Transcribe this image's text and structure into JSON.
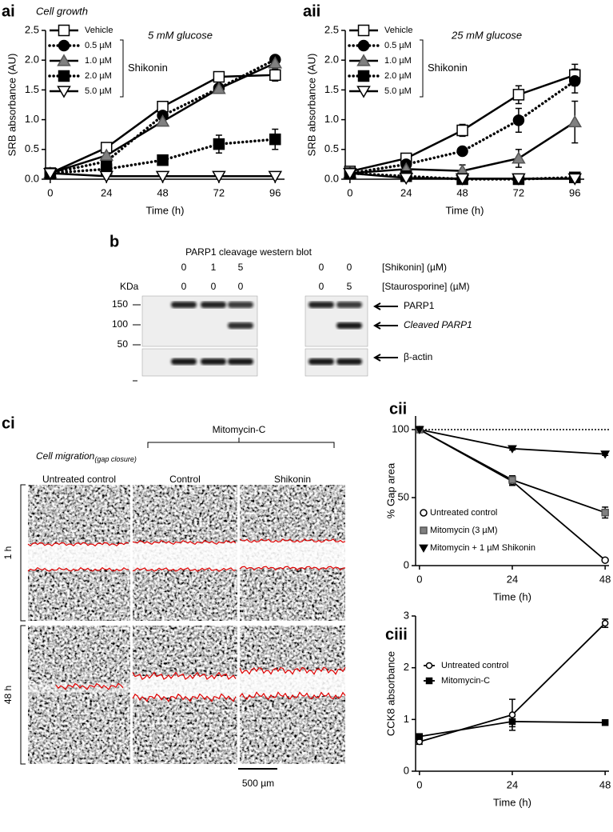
{
  "chart_data": [
    {
      "type": "line",
      "panel": "ai",
      "title": "Cell growth",
      "annotation": "5 mM glucose",
      "x_label": "Time (h)",
      "y_label": "SRB absorbance (AU)",
      "x": [
        0,
        24,
        48,
        72,
        96
      ],
      "xlim": [
        -2,
        100
      ],
      "xticks": [
        0,
        24,
        48,
        72,
        96
      ],
      "ylim": [
        0,
        2.5
      ],
      "yticks": [
        {
          "value": 0,
          "label": "0.0"
        },
        0.5,
        {
          "value": 1,
          "label": "1.0"
        },
        1.5,
        {
          "value": 2,
          "label": "2.0"
        },
        2.5
      ],
      "legend": "upper left",
      "legend_group": "Shikonin",
      "series": [
        {
          "name": "Vehicle",
          "color": "#ffffff",
          "marker": "square",
          "line_style": "solid",
          "values": [
            0.1,
            0.53,
            1.22,
            1.72,
            1.75
          ],
          "errors": [
            0.02,
            0.03,
            0.05,
            0.05,
            0.1
          ]
        },
        {
          "name": "0.5 µM",
          "color": "#000000",
          "marker": "circle",
          "line_style": "dotted",
          "values": [
            0.1,
            0.3,
            1.07,
            1.53,
            2.01
          ]
        },
        {
          "name": "1.0 µM",
          "color": "#808080",
          "marker": "triangle",
          "line_style": "solid",
          "values": [
            0.1,
            0.4,
            0.97,
            1.52,
            1.95
          ]
        },
        {
          "name": "2.0 µM",
          "color": "#000000",
          "marker": "square",
          "line_style": "dotted",
          "values": [
            0.1,
            0.17,
            0.32,
            0.59,
            0.67
          ],
          "errors": [
            0,
            0.03,
            0.03,
            0.15,
            0.17
          ]
        },
        {
          "name": "5.0 µM",
          "color": "#ffffff",
          "marker": "triangle-down",
          "line_style": "solid",
          "values": [
            0.1,
            0.05,
            0.05,
            0.05,
            0.05
          ]
        }
      ]
    },
    {
      "type": "line",
      "panel": "aii",
      "annotation": "25 mM glucose",
      "x_label": "Time (h)",
      "y_label": "SRB absorbance (AU)",
      "x": [
        0,
        24,
        48,
        72,
        96
      ],
      "xlim": [
        -2,
        100
      ],
      "xticks": [
        0,
        24,
        48,
        72,
        96
      ],
      "ylim": [
        0,
        2.5
      ],
      "yticks": [
        {
          "value": 0,
          "label": "0.0"
        },
        0.5,
        {
          "value": 1,
          "label": "1.0"
        },
        1.5,
        {
          "value": 2,
          "label": "2.0"
        },
        2.5
      ],
      "legend": "upper left",
      "legend_group": "Shikonin",
      "series": [
        {
          "name": "Vehicle",
          "color": "#ffffff",
          "marker": "square",
          "line_style": "solid",
          "values": [
            0.13,
            0.35,
            0.82,
            1.42,
            1.75
          ],
          "errors": [
            0.05,
            0.05,
            0.1,
            0.15,
            0.18
          ]
        },
        {
          "name": "0.5 µM",
          "color": "#000000",
          "marker": "circle",
          "line_style": "dotted",
          "values": [
            0.1,
            0.25,
            0.47,
            0.99,
            1.65
          ],
          "errors": [
            0,
            0.05,
            0.07,
            0.2,
            0.2
          ]
        },
        {
          "name": "1.0 µM",
          "color": "#808080",
          "marker": "triangle",
          "line_style": "solid",
          "values": [
            0.1,
            0.17,
            0.14,
            0.35,
            0.96
          ],
          "errors": [
            0,
            0.05,
            0.1,
            0.15,
            0.35
          ]
        },
        {
          "name": "2.0 µM",
          "color": "#000000",
          "marker": "square",
          "line_style": "dotted",
          "values": [
            0.1,
            0.05,
            0,
            0,
            0.03
          ]
        },
        {
          "name": "5.0 µM",
          "color": "#ffffff",
          "marker": "triangle-down",
          "line_style": "solid",
          "values": [
            0.1,
            0.02,
            0.01,
            0.01,
            0.01
          ]
        }
      ]
    },
    {
      "type": "line",
      "panel": "cii",
      "x_label": "Time (h)",
      "y_label": "% Gap area",
      "x": [
        0,
        24,
        48
      ],
      "xlim": [
        -1,
        49
      ],
      "xticks": [
        0,
        24,
        48
      ],
      "ylim": [
        0,
        110
      ],
      "yticks": [
        0,
        50,
        100
      ],
      "reference_line": 100,
      "legend": "lower left",
      "series": [
        {
          "name": "Untreated control",
          "color": "#ffffff",
          "marker": "circle",
          "line_style": "solid",
          "values": [
            100,
            62,
            4
          ],
          "errors": [
            0,
            3,
            0
          ]
        },
        {
          "name": "Mitomycin (3 µM)",
          "color": "#808080",
          "marker": "square",
          "line_style": "solid",
          "values": [
            100,
            63,
            39
          ],
          "errors": [
            0,
            3,
            4
          ]
        },
        {
          "name": "Mitomycin + 1 µM Shikonin",
          "color": "#000000",
          "marker": "triangle-down",
          "line_style": "solid",
          "values": [
            100,
            86,
            82
          ],
          "errors": [
            0,
            1,
            1
          ]
        }
      ]
    },
    {
      "type": "line",
      "panel": "ciii",
      "x_label": "Time (h)",
      "y_label": "CCK8 absorbance",
      "x": [
        0,
        24,
        48
      ],
      "xlim": [
        -1,
        49
      ],
      "xticks": [
        0,
        24,
        48
      ],
      "ylim": [
        0,
        3
      ],
      "yticks": [
        0,
        1,
        2,
        3
      ],
      "legend": "upper left",
      "series": [
        {
          "name": "Untreated control",
          "color": "#ffffff",
          "marker": "circle",
          "line_style": "solid",
          "values": [
            0.57,
            1.09,
            2.86
          ],
          "errors": [
            0.05,
            0.3,
            0.08
          ]
        },
        {
          "name": "Mitomycin-C",
          "color": "#000000",
          "marker": "square",
          "line_style": "solid",
          "values": [
            0.67,
            0.96,
            0.94
          ],
          "errors": [
            0.05,
            0.1,
            0.02
          ]
        }
      ]
    }
  ],
  "blot": {
    "panel": "b",
    "title": "PARP1 cleavage western blot",
    "kda_label": "KDa",
    "markers": [
      150,
      100,
      50
    ],
    "rows": [
      {
        "label": "[Shikonin] (µM)",
        "values": [
          0,
          1,
          5,
          0,
          0
        ]
      },
      {
        "label": "[Staurosporine] (µM)",
        "values": [
          0,
          0,
          0,
          0,
          5
        ]
      }
    ],
    "bands": [
      "PARP1",
      "Cleaved PARP1",
      "β-actin"
    ]
  },
  "migration": {
    "panel": "ci",
    "title": "Cell migration",
    "title_sub": "(gap closure)",
    "group": "Mitomycin-C",
    "columns": [
      "Untreated control",
      "Control",
      "Shikonin"
    ],
    "rows": [
      "1 h",
      "48 h"
    ],
    "scale_bar": "500 µm"
  }
}
